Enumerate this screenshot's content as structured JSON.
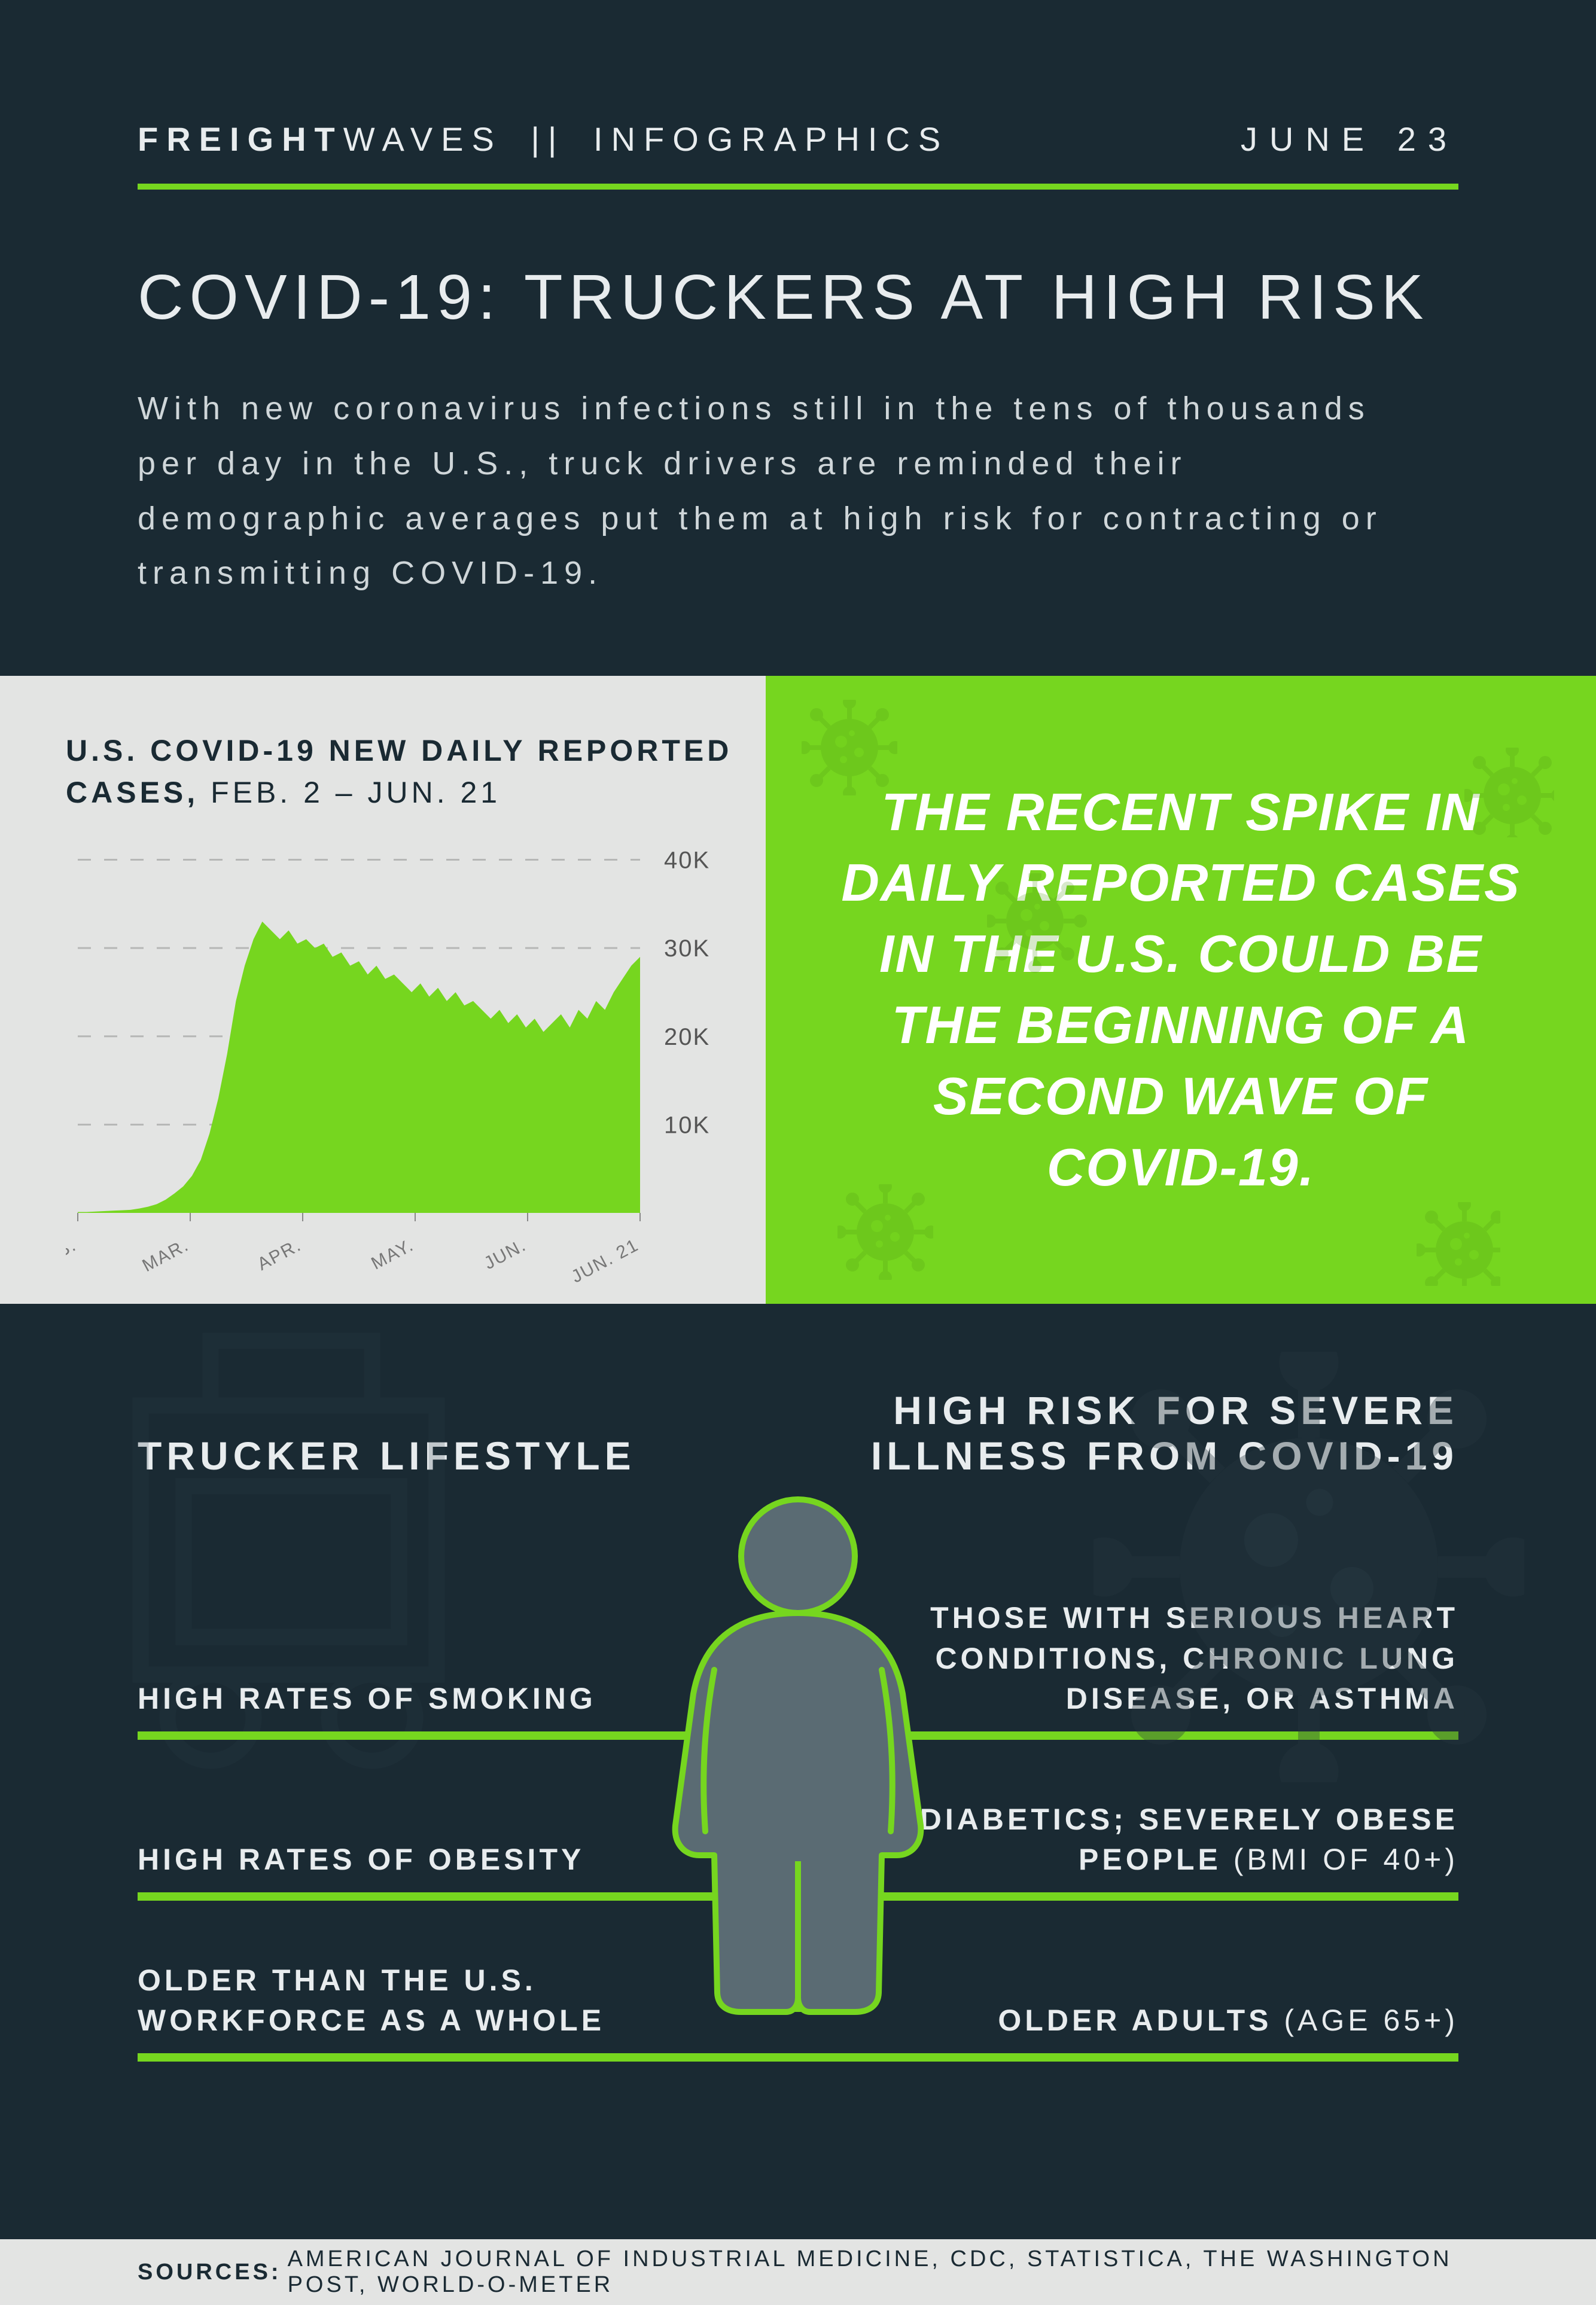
{
  "header": {
    "brand_bold": "FREIGHT",
    "brand_light": "WAVES",
    "brand_section": "INFOGRAPHICS",
    "divider": "||",
    "date": "JUNE 23"
  },
  "title": "COVID-19: TRUCKERS AT HIGH RISK",
  "intro": "With new coronavirus infections still in the tens of thousands per day in the U.S., truck drivers are reminded their demographic averages put them at high risk for contracting or transmitting COVID-19.",
  "chart": {
    "type": "area",
    "title_bold": "U.S. COVID-19 NEW DAILY REPORTED CASES,",
    "title_range": " FEB. 2 – JUN. 21",
    "x_labels": [
      "FEB.",
      "MAR.",
      "APR.",
      "MAY.",
      "JUN.",
      "JUN. 21"
    ],
    "y_ticks": [
      10,
      20,
      30,
      40
    ],
    "y_tick_labels": [
      "10K",
      "20K",
      "30K",
      "40K"
    ],
    "ylim": [
      0,
      42
    ],
    "fill_color": "#76d61f",
    "grid_color": "#b6b7b6",
    "axis_label_color": "#777777",
    "background_color": "#e3e4e3",
    "series": [
      0.1,
      0.1,
      0.15,
      0.2,
      0.25,
      0.3,
      0.35,
      0.5,
      0.7,
      1.0,
      1.5,
      2.2,
      3.0,
      4.2,
      6.0,
      9.0,
      13.0,
      18.0,
      24.0,
      28.0,
      31.0,
      33.0,
      32.0,
      31.0,
      32.0,
      30.5,
      31.0,
      30.0,
      30.5,
      29.0,
      29.5,
      28.0,
      28.5,
      27.0,
      28.0,
      26.5,
      27.0,
      26.0,
      25.0,
      26.0,
      24.5,
      25.5,
      24.0,
      25.0,
      23.5,
      24.0,
      23.0,
      22.0,
      23.0,
      21.5,
      22.5,
      21.0,
      22.0,
      20.5,
      21.5,
      22.5,
      21.0,
      23.0,
      22.0,
      24.0,
      23.0,
      25.0,
      26.5,
      28.0,
      29.0
    ]
  },
  "callout": "THE RECENT SPIKE IN DAILY REPORTED CASES IN THE U.S. COULD BE THE BEGINNING OF A SECOND WAVE OF COVID-19.",
  "lower": {
    "left_heading": "TRUCKER LIFESTYLE",
    "right_heading": "HIGH RISK FOR SEVERE ILLNESS FROM COVID-19",
    "rows": [
      {
        "left": "HIGH RATES OF SMOKING",
        "right_main": "THOSE WITH SERIOUS HEART CONDITIONS, CHRONIC LUNG DISEASE, OR ASTHMA",
        "right_sub": ""
      },
      {
        "left": "HIGH RATES OF OBESITY",
        "right_main": "DIABETICS; SEVERELY OBESE PEOPLE ",
        "right_sub": "(BMI OF 40+)"
      },
      {
        "left": "OLDER  THAN THE U.S. WORKFORCE AS A WHOLE",
        "right_main": "OLDER ADULTS ",
        "right_sub": "(AGE 65+)"
      }
    ]
  },
  "sources": {
    "label": "SOURCES:",
    "list": " AMERICAN JOURNAL OF INDUSTRIAL MEDICINE, CDC, STATISTICA, THE WASHINGTON POST, WORLD-O-METER"
  },
  "colors": {
    "bg": "#1a2a33",
    "accent": "#76d61f",
    "light_panel": "#e3e4e3",
    "text_light": "#e8ecee"
  }
}
